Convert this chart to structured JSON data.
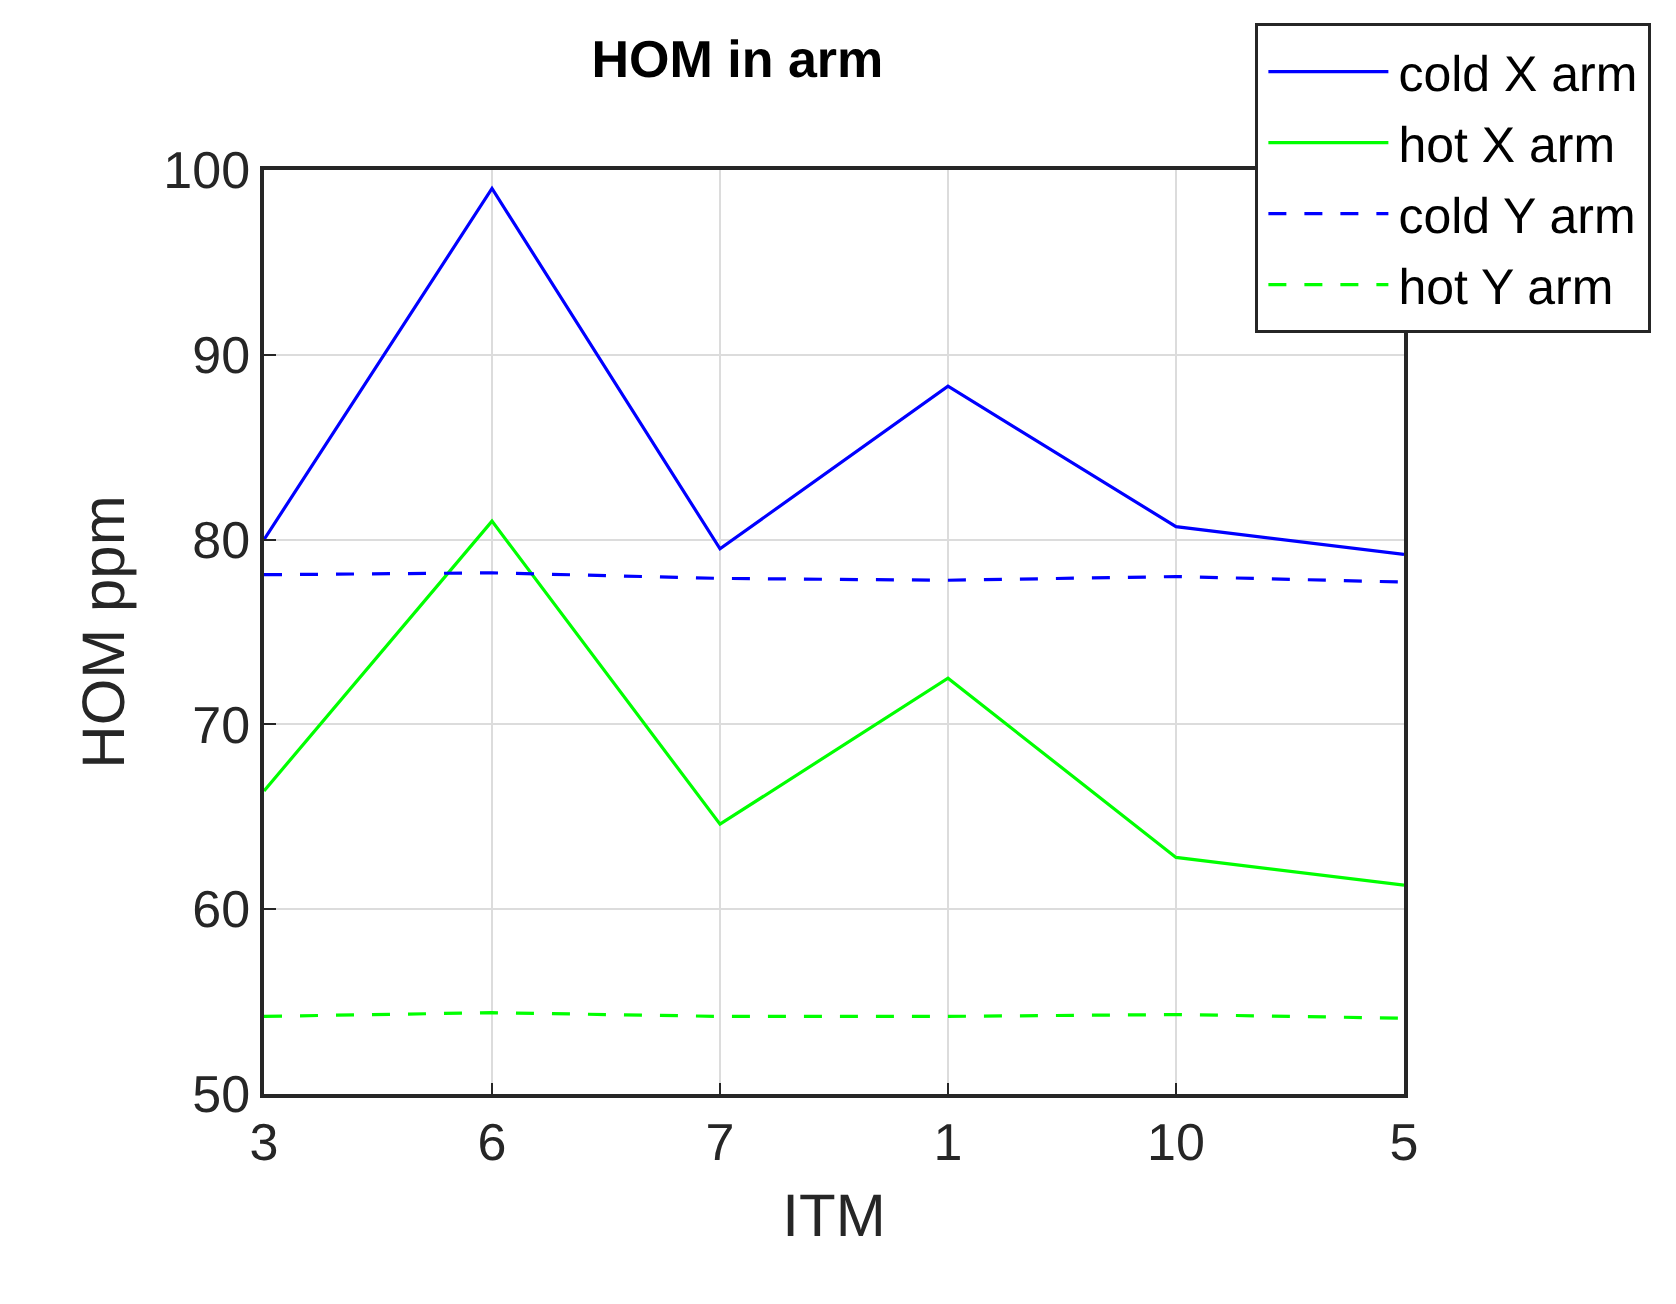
{
  "chart_data": {
    "type": "line",
    "title": "HOM in arm",
    "xlabel": "ITM",
    "ylabel": "HOM ppm",
    "categories": [
      "3",
      "6",
      "7",
      "1",
      "10",
      "5"
    ],
    "series": [
      {
        "name": "cold X arm",
        "color": "#0000ff",
        "line_style": "solid",
        "values": [
          80.0,
          99.0,
          79.5,
          88.3,
          80.7,
          79.2
        ]
      },
      {
        "name": "hot X arm",
        "color": "#00ff00",
        "line_style": "solid",
        "values": [
          66.4,
          81.0,
          64.6,
          72.5,
          62.8,
          61.3
        ]
      },
      {
        "name": "cold Y arm",
        "color": "#0000ff",
        "line_style": "dashed",
        "values": [
          78.1,
          78.2,
          77.9,
          77.8,
          78.0,
          77.7
        ]
      },
      {
        "name": "hot Y arm",
        "color": "#00ff00",
        "line_style": "dashed",
        "values": [
          54.2,
          54.4,
          54.2,
          54.2,
          54.3,
          54.1
        ]
      }
    ],
    "ylim": [
      50,
      100
    ],
    "yticks": [
      50,
      60,
      70,
      80,
      90,
      100
    ],
    "grid": true,
    "legend": "top right",
    "marker": "none"
  }
}
